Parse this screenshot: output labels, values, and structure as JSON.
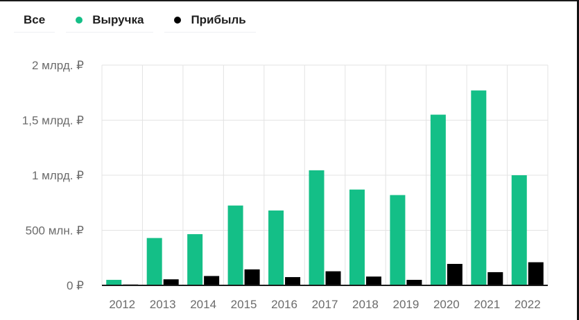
{
  "legend": {
    "all_label": "Все",
    "revenue_label": "Выручка",
    "profit_label": "Прибыль"
  },
  "colors": {
    "revenue": "#14bf87",
    "profit": "#000000",
    "grid": "#e3e3e3",
    "axis": "#1a1a1a"
  },
  "chart_data": {
    "type": "bar",
    "title": "",
    "xlabel": "",
    "ylabel": "",
    "categories": [
      "2012",
      "2013",
      "2014",
      "2015",
      "2016",
      "2017",
      "2018",
      "2019",
      "2020",
      "2021",
      "2022"
    ],
    "series": [
      {
        "name": "Выручка",
        "color": "#14bf87",
        "values": [
          50,
          430,
          465,
          725,
          680,
          1045,
          870,
          820,
          1550,
          1770,
          1000
        ]
      },
      {
        "name": "Прибыль",
        "color": "#000000",
        "values": [
          8,
          55,
          85,
          145,
          75,
          128,
          80,
          50,
          195,
          120,
          210
        ]
      }
    ],
    "ylim": [
      0,
      2000
    ],
    "yunit": "млн. ₽",
    "y_ticks": [
      {
        "value": 0,
        "label": "0 ₽"
      },
      {
        "value": 500,
        "label": "500 млн. ₽"
      },
      {
        "value": 1000,
        "label": "1 млрд. ₽"
      },
      {
        "value": 1500,
        "label": "1,5 млрд. ₽"
      },
      {
        "value": 2000,
        "label": "2 млрд. ₽"
      }
    ],
    "grid": true,
    "legend_position": "top-left"
  }
}
